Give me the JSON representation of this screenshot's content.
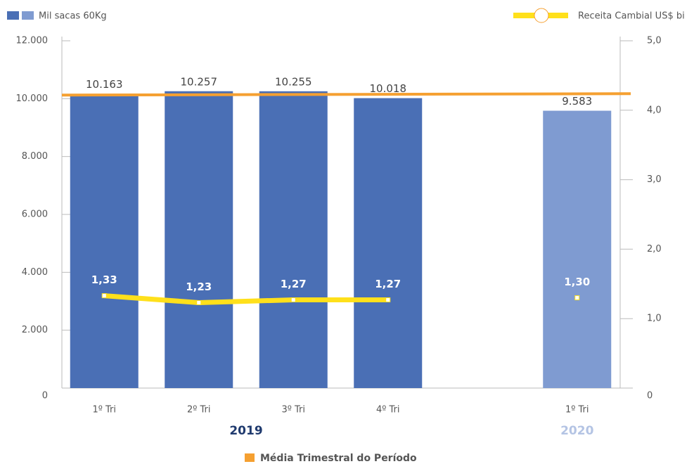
{
  "chart_data": {
    "type": "bar",
    "categories": [
      "1º Tri",
      "2º Tri",
      "3º Tri",
      "4º Tri",
      null,
      "1º Tri"
    ],
    "groups": [
      {
        "label": "2019",
        "color": "#1f3a6e"
      },
      {
        "label": "2020",
        "color": "#b4c4e4"
      }
    ],
    "series": [
      {
        "name": "Mil sacas 60Kg",
        "type": "bar",
        "legend_colors": [
          "#4a6fb5",
          "#7f9bd1"
        ],
        "colors": [
          "#4a6fb5",
          "#4a6fb5",
          "#4a6fb5",
          "#4a6fb5",
          null,
          "#7f9bd1"
        ],
        "values": [
          10163,
          10257,
          10255,
          10018,
          null,
          9583
        ],
        "value_labels": [
          "10.163",
          "10.257",
          "10.255",
          "10.018",
          null,
          "9.583"
        ]
      },
      {
        "name": "Receita Cambial US$ bi",
        "type": "line",
        "axis": "y2",
        "color": "#ffe01b",
        "values": [
          1.33,
          1.23,
          1.27,
          1.27,
          null,
          1.3
        ],
        "value_labels": [
          "1,33",
          "1,23",
          "1,27",
          "1,27",
          null,
          "1,30"
        ]
      }
    ],
    "reference_line": {
      "name": "Média Trimestral do Período",
      "value": 10148,
      "color": "#f5a031"
    },
    "ylim": [
      0,
      12000
    ],
    "yticks": [
      0,
      {
        "value": 2000,
        "label": "2.000"
      },
      {
        "value": 4000,
        "label": "4.000"
      },
      {
        "value": 6000,
        "label": "6.000"
      },
      {
        "value": 8000,
        "label": "8.000"
      },
      {
        "value": 10000,
        "label": "10.000"
      },
      {
        "value": 12000,
        "label": "12.000"
      }
    ],
    "y2lim": [
      0,
      5
    ],
    "y2ticks": [
      0,
      {
        "value": 1,
        "label": "1,0"
      },
      {
        "value": 2,
        "label": "2,0"
      },
      {
        "value": 3,
        "label": "3,0"
      },
      {
        "value": 4,
        "label": "4,0"
      },
      {
        "value": 5,
        "label": "5,0"
      }
    ]
  }
}
